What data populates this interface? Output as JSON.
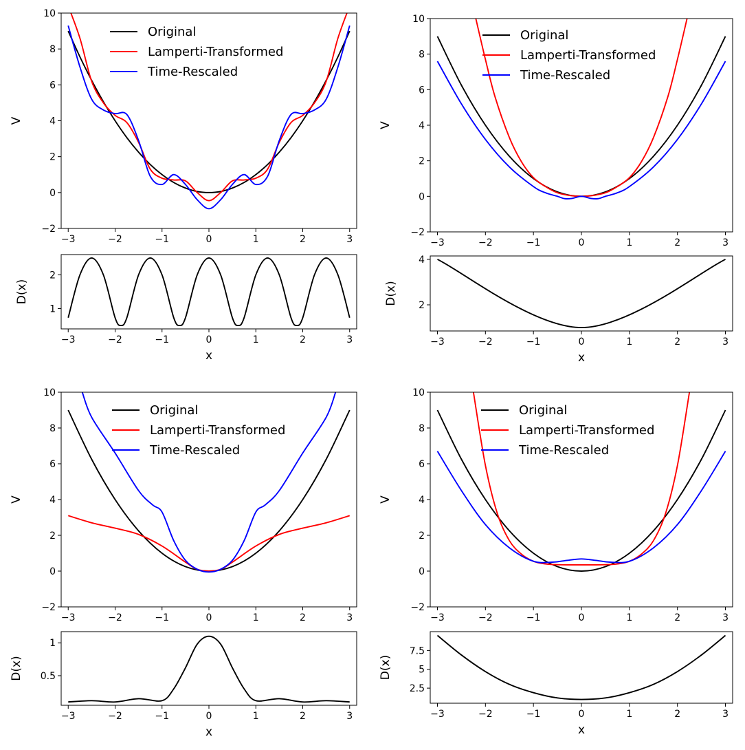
{
  "chart_data": [
    {
      "type": "line",
      "panel": "top-left",
      "main": {
        "xlabel": "",
        "ylabel": "V",
        "xlim": [
          -3.15,
          3.15
        ],
        "ylim": [
          -2,
          10
        ],
        "xticks": [
          -3,
          -2,
          -1,
          0,
          1,
          2,
          3
        ],
        "yticks": [
          -2,
          0,
          2,
          4,
          6,
          8,
          10
        ],
        "x": [
          -3.0,
          -2.75,
          -2.5,
          -2.25,
          -2.0,
          -1.75,
          -1.5,
          -1.25,
          -1.0,
          -0.75,
          -0.5,
          -0.25,
          0.0,
          0.25,
          0.5,
          0.75,
          1.0,
          1.25,
          1.5,
          1.75,
          2.0,
          2.25,
          2.5,
          2.75,
          3.0
        ],
        "series": [
          {
            "name": "Original",
            "color": "#000000",
            "values": [
              9.0,
              7.56,
              6.25,
              5.06,
              4.0,
              3.06,
              2.25,
              1.56,
              1.0,
              0.56,
              0.25,
              0.06,
              0.0,
              0.06,
              0.25,
              0.56,
              1.0,
              1.56,
              2.25,
              3.06,
              4.0,
              5.06,
              6.25,
              7.56,
              9.0
            ]
          },
          {
            "name": "Lamperti-Transformed",
            "color": "#ff0000",
            "values": [
              10.4,
              8.6,
              6.2,
              5.0,
              4.3,
              3.9,
              2.8,
              1.3,
              0.8,
              0.7,
              0.65,
              0.0,
              -0.45,
              0.0,
              0.65,
              0.7,
              0.8,
              1.3,
              2.8,
              3.9,
              4.3,
              5.0,
              6.2,
              8.6,
              10.4
            ]
          },
          {
            "name": "Time-Rescaled",
            "color": "#0000ff",
            "values": [
              9.3,
              7.0,
              5.2,
              4.6,
              4.4,
              4.35,
              2.9,
              0.9,
              0.45,
              1.0,
              0.45,
              -0.4,
              -0.9,
              -0.4,
              0.45,
              1.0,
              0.45,
              0.9,
              2.9,
              4.35,
              4.4,
              4.6,
              5.2,
              7.0,
              9.3
            ]
          }
        ],
        "legend": "top-center"
      },
      "sub": {
        "xlabel": "x",
        "ylabel": "D(x)",
        "xlim": [
          -3.15,
          3.15
        ],
        "ylim": [
          0.4,
          2.6
        ],
        "xticks": [
          -3,
          -2,
          -1,
          0,
          1,
          2,
          3
        ],
        "yticks": [
          1,
          2
        ],
        "x": [
          -3.0,
          -2.75,
          -2.5,
          -2.25,
          -2.0,
          -1.875,
          -1.75,
          -1.5,
          -1.25,
          -1.0,
          -0.75,
          -0.625,
          -0.5,
          -0.25,
          0.0,
          0.25,
          0.5,
          0.625,
          0.75,
          1.0,
          1.25,
          1.5,
          1.75,
          1.875,
          2.0,
          2.25,
          2.5,
          2.75,
          3.0
        ],
        "series": [
          {
            "name": "D(x)",
            "color": "#000000",
            "values": [
              0.73,
              2.0,
              2.5,
              2.0,
              0.73,
              0.5,
              0.73,
              2.0,
              2.5,
              2.0,
              0.73,
              0.5,
              0.73,
              2.0,
              2.5,
              2.0,
              0.73,
              0.5,
              0.73,
              2.0,
              2.5,
              2.0,
              0.73,
              0.5,
              0.73,
              2.0,
              2.5,
              2.0,
              0.73
            ]
          }
        ]
      }
    },
    {
      "type": "line",
      "panel": "top-right",
      "main": {
        "xlabel": "",
        "ylabel": "V",
        "xlim": [
          -3.15,
          3.15
        ],
        "ylim": [
          -2,
          10
        ],
        "xticks": [
          -3,
          -2,
          -1,
          0,
          1,
          2,
          3
        ],
        "yticks": [
          -2,
          0,
          2,
          4,
          6,
          8,
          10
        ],
        "x": [
          -3.0,
          -2.5,
          -2.0,
          -1.5,
          -1.0,
          -0.75,
          -0.5,
          -0.35,
          -0.2,
          0.0,
          0.2,
          0.35,
          0.5,
          0.75,
          1.0,
          1.5,
          2.0,
          2.5,
          3.0
        ],
        "series": [
          {
            "name": "Original",
            "color": "#000000",
            "x": [
              -3.0,
              -2.5,
              -2.0,
              -1.5,
              -1.0,
              -0.5,
              0.0,
              0.5,
              1.0,
              1.5,
              2.0,
              2.5,
              3.0
            ],
            "values": [
              9.0,
              6.25,
              4.0,
              2.25,
              1.0,
              0.25,
              0.0,
              0.25,
              1.0,
              2.25,
              4.0,
              6.25,
              9.0
            ]
          },
          {
            "name": "Lamperti-Transformed",
            "color": "#ff0000",
            "x": [
              -2.2,
              -2.0,
              -1.8,
              -1.5,
              -1.25,
              -1.0,
              -0.75,
              -0.5,
              -0.25,
              0.0,
              0.25,
              0.5,
              0.75,
              1.0,
              1.25,
              1.5,
              1.8,
              2.0,
              2.2
            ],
            "values": [
              10.0,
              7.7,
              5.6,
              3.3,
              1.95,
              1.05,
              0.55,
              0.2,
              0.05,
              0.0,
              0.05,
              0.2,
              0.55,
              1.05,
              1.95,
              3.3,
              5.6,
              7.7,
              10.0
            ]
          },
          {
            "name": "Time-Rescaled",
            "color": "#0000ff",
            "x": [
              -3.0,
              -2.5,
              -2.0,
              -1.5,
              -1.0,
              -0.75,
              -0.5,
              -0.35,
              -0.2,
              0.0,
              0.2,
              0.35,
              0.5,
              0.75,
              1.0,
              1.5,
              2.0,
              2.5,
              3.0
            ],
            "values": [
              7.6,
              5.2,
              3.2,
              1.65,
              0.55,
              0.2,
              0.0,
              -0.13,
              -0.12,
              0.0,
              -0.12,
              -0.13,
              0.0,
              0.2,
              0.55,
              1.65,
              3.2,
              5.2,
              7.6
            ]
          }
        ],
        "legend": "top-center"
      },
      "sub": {
        "xlabel": "x",
        "ylabel": "D(x)",
        "xlim": [
          -3.15,
          3.15
        ],
        "ylim": [
          0.85,
          4.15
        ],
        "xticks": [
          -3,
          -2,
          -1,
          0,
          1,
          2,
          3
        ],
        "yticks": [
          2,
          4
        ],
        "x": [
          -3.0,
          0.0,
          3.0
        ],
        "series": [
          {
            "name": "D(x)",
            "color": "#000000",
            "values": [
              4.0,
              1.0,
              4.0
            ]
          }
        ]
      }
    },
    {
      "type": "line",
      "panel": "bottom-left",
      "main": {
        "xlabel": "",
        "ylabel": "V",
        "xlim": [
          -3.15,
          3.15
        ],
        "ylim": [
          -2,
          10
        ],
        "xticks": [
          -3,
          -2,
          -1,
          0,
          1,
          2,
          3
        ],
        "yticks": [
          -2,
          0,
          2,
          4,
          6,
          8,
          10
        ],
        "series": [
          {
            "name": "Original",
            "color": "#000000",
            "x": [
              -3.0,
              -2.5,
              -2.0,
              -1.5,
              -1.0,
              -0.5,
              0.0,
              0.5,
              1.0,
              1.5,
              2.0,
              2.5,
              3.0
            ],
            "values": [
              9.0,
              6.25,
              4.0,
              2.25,
              1.0,
              0.25,
              0.0,
              0.25,
              1.0,
              2.25,
              4.0,
              6.25,
              9.0
            ]
          },
          {
            "name": "Lamperti-Transformed",
            "color": "#ff0000",
            "x": [
              -3.0,
              -2.5,
              -2.0,
              -1.5,
              -1.0,
              -0.5,
              -0.25,
              0.0,
              0.25,
              0.5,
              1.0,
              1.5,
              2.0,
              2.5,
              3.0
            ],
            "values": [
              3.1,
              2.7,
              2.4,
              2.05,
              1.4,
              0.5,
              0.1,
              0.0,
              0.1,
              0.5,
              1.4,
              2.05,
              2.4,
              2.7,
              3.1
            ]
          },
          {
            "name": "Time-Rescaled",
            "color": "#0000ff",
            "x": [
              -2.7,
              -2.5,
              -2.0,
              -1.5,
              -1.2,
              -1.0,
              -0.75,
              -0.5,
              -0.25,
              0.0,
              0.25,
              0.5,
              0.75,
              1.0,
              1.2,
              1.5,
              2.0,
              2.5,
              2.7
            ],
            "values": [
              10.0,
              8.6,
              6.6,
              4.5,
              3.7,
              3.3,
              1.7,
              0.6,
              0.1,
              -0.05,
              0.1,
              0.6,
              1.7,
              3.3,
              3.7,
              4.5,
              6.6,
              8.6,
              10.0
            ]
          }
        ],
        "legend": "top-center"
      },
      "sub": {
        "xlabel": "x",
        "ylabel": "D(x)",
        "xlim": [
          -3.15,
          3.15
        ],
        "ylim": [
          0.05,
          1.17
        ],
        "xticks": [
          -3,
          -2,
          -1,
          0,
          1,
          2,
          3
        ],
        "yticks": [
          0.5,
          1.0
        ],
        "x": [
          -3.0,
          -2.5,
          -2.0,
          -1.5,
          -1.0,
          -0.75,
          -0.5,
          -0.25,
          0.0,
          0.25,
          0.5,
          0.75,
          1.0,
          1.5,
          2.0,
          2.5,
          3.0
        ],
        "series": [
          {
            "name": "D(x)",
            "color": "#000000",
            "values": [
              0.1,
              0.12,
              0.1,
              0.15,
              0.12,
              0.3,
              0.62,
              0.98,
              1.1,
              0.98,
              0.62,
              0.3,
              0.12,
              0.15,
              0.1,
              0.12,
              0.1
            ]
          }
        ]
      }
    },
    {
      "type": "line",
      "panel": "bottom-right",
      "main": {
        "xlabel": "",
        "ylabel": "V",
        "xlim": [
          -3.15,
          3.15
        ],
        "ylim": [
          -2,
          10
        ],
        "xticks": [
          -3,
          -2,
          -1,
          0,
          1,
          2,
          3
        ],
        "yticks": [
          -2,
          0,
          2,
          4,
          6,
          8,
          10
        ],
        "series": [
          {
            "name": "Original",
            "color": "#000000",
            "x": [
              -3.0,
              -2.5,
              -2.0,
              -1.5,
              -1.0,
              -0.5,
              0.0,
              0.5,
              1.0,
              1.5,
              2.0,
              2.5,
              3.0
            ],
            "values": [
              9.0,
              6.25,
              4.0,
              2.25,
              1.0,
              0.25,
              0.0,
              0.25,
              1.0,
              2.25,
              4.0,
              6.25,
              9.0
            ]
          },
          {
            "name": "Lamperti-Transformed",
            "color": "#ff0000",
            "x": [
              -2.25,
              -2.0,
              -1.75,
              -1.5,
              -1.25,
              -1.0,
              -0.75,
              -0.5,
              0.0,
              0.5,
              0.75,
              1.0,
              1.25,
              1.5,
              1.75,
              2.0,
              2.25
            ],
            "values": [
              10.0,
              5.9,
              3.2,
              1.7,
              0.95,
              0.55,
              0.4,
              0.36,
              0.35,
              0.36,
              0.4,
              0.55,
              0.95,
              1.7,
              3.2,
              5.9,
              10.0
            ]
          },
          {
            "name": "Time-Rescaled",
            "color": "#0000ff",
            "x": [
              -3.0,
              -2.5,
              -2.0,
              -1.5,
              -1.0,
              -0.6,
              -0.3,
              0.0,
              0.3,
              0.6,
              1.0,
              1.5,
              2.0,
              2.5,
              3.0
            ],
            "values": [
              6.7,
              4.5,
              2.6,
              1.3,
              0.55,
              0.5,
              0.6,
              0.68,
              0.6,
              0.5,
              0.55,
              1.3,
              2.6,
              4.5,
              6.7
            ]
          }
        ],
        "legend": "top-center"
      },
      "sub": {
        "xlabel": "x",
        "ylabel": "D(x)",
        "xlim": [
          -3.15,
          3.15
        ],
        "ylim": [
          0.5,
          10.0
        ],
        "xticks": [
          -3,
          -2,
          -1,
          0,
          1,
          2,
          3
        ],
        "yticks": [
          2.5,
          5.0,
          7.5
        ],
        "x": [
          -3.0,
          -2.5,
          -2.0,
          -1.5,
          -1.0,
          -0.5,
          0.0,
          0.5,
          1.0,
          1.5,
          2.0,
          2.5,
          3.0
        ],
        "series": [
          {
            "name": "D(x)",
            "color": "#000000",
            "values": [
              9.5,
              6.9,
              4.7,
              3.0,
              1.9,
              1.2,
              1.0,
              1.2,
              1.9,
              3.0,
              4.7,
              6.9,
              9.5
            ]
          }
        ]
      }
    }
  ]
}
